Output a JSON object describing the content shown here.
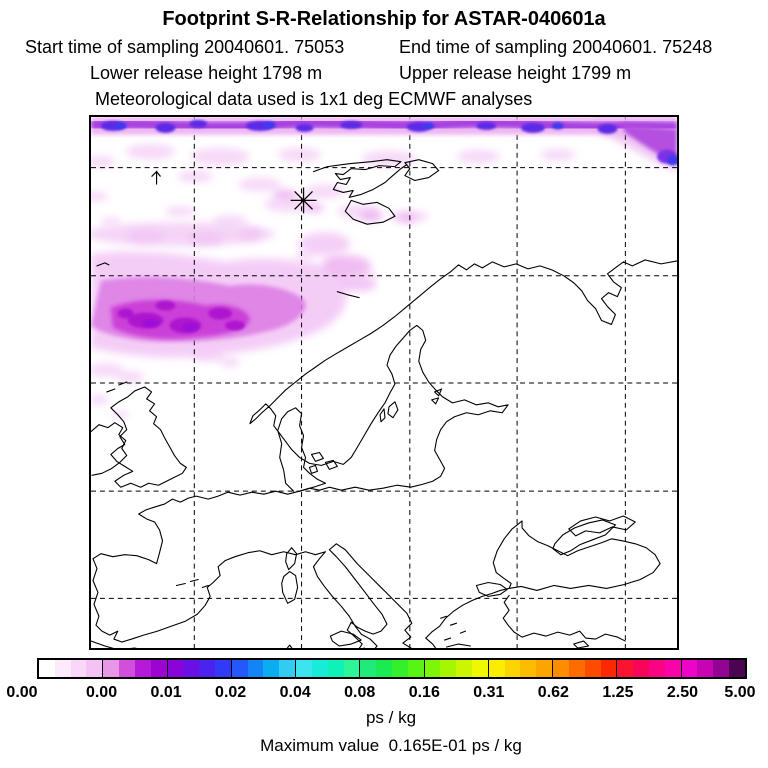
{
  "header": {
    "title": "Footprint S-R-Relationship for ASTAR-040601a",
    "start_time": "Start time of sampling 20040601. 75053",
    "end_time": "End time of sampling 20040601. 75248",
    "lower_release": "Lower release height 1798 m",
    "upper_release": "Upper release height 1799 m",
    "met_data": "Meteorological data used is 1x1 deg ECMWF analyses"
  },
  "colorbar": {
    "tick_labels": [
      "0.00",
      "0.00",
      "0.01",
      "0.02",
      "0.04",
      "0.08",
      "0.16",
      "0.31",
      "0.62",
      "1.25",
      "2.50",
      "5.00"
    ],
    "unit_label": "ps / kg",
    "segments": [
      [
        "#ffffff",
        "#fdebfd",
        "#f9d7f9",
        "#f4c2f4"
      ],
      [
        "#e698e6",
        "#d050dc",
        "#b41ad8",
        "#9c04cf"
      ],
      [
        "#8804d8",
        "#6b10e4",
        "#4c22ee",
        "#2f3bf6"
      ],
      [
        "#2458f8",
        "#1284f6",
        "#0cacf2",
        "#32ccf2"
      ],
      [
        "#3ce4f0",
        "#16ecd8",
        "#0ef2b8",
        "#2ef698"
      ],
      [
        "#20ea78",
        "#18ec50",
        "#34f02c",
        "#58f414"
      ],
      [
        "#7ef608",
        "#a6f600",
        "#ccf600",
        "#f0f800"
      ],
      [
        "#fcec00",
        "#fcd400",
        "#fcbc00",
        "#fca400"
      ],
      [
        "#fc8c00",
        "#fc6c00",
        "#fc4c00",
        "#fc2800"
      ],
      [
        "#fa1430",
        "#f80458",
        "#f80484",
        "#f804aa"
      ],
      [
        "#ee04c8",
        "#c604b2",
        "#940494",
        "#4c0452"
      ]
    ]
  },
  "footer": {
    "max_value": "Maximum value  0.165E-01 ps / kg"
  },
  "map": {
    "marker": "release-site-asterisk",
    "graticule": {
      "vertical_lines": 5,
      "horizontal_lines": 5,
      "style": "dashed"
    },
    "plume_palette": [
      "#f5d3f7",
      "#eaaaef",
      "#dd7fe6",
      "#cb3fd8",
      "#ad19cf",
      "#5b2ce6",
      "#3d3bf0"
    ]
  },
  "chart_data": {
    "type": "heatmap",
    "title": "Footprint S-R-Relationship for ASTAR-040601a",
    "colorbar_levels": [
      "0.00",
      "0.00",
      "0.01",
      "0.02",
      "0.04",
      "0.08",
      "0.16",
      "0.31",
      "0.62",
      "1.25",
      "2.50",
      "5.00"
    ],
    "units": "ps / kg",
    "maximum_value": "0.165E-01 ps / kg",
    "campaign": "ASTAR-040601a",
    "start_time": "20040601. 75053",
    "end_time": "20040601. 75248",
    "lower_release_height_m": 1798,
    "upper_release_height_m": 1799,
    "meteorology": "1x1 deg ECMWF analyses",
    "map_extent_note": "Europe / Scandinavia / Svalbard region, 6x6 dashed lat-lon graticule, coastlines drawn as thin black outlines",
    "features": [
      "dense dark magenta-violet footprint band along entire top (northern) map edge, thickening and dipping down at the right corner with blue-violet maxima",
      "large light-to-bright magenta plume over the Norwegian Sea west of mid-Norway, touching the left map edge",
      "scattered faint pink plume patches across the north-west quadrant between the top band and the main plume",
      "8-spoke asterisk release marker just west of the Svalbard coastline on a graticule line",
      "small upward arrow symbol near the upper-left graticule intersection",
      "no footprint signal over central and southern Europe"
    ]
  }
}
